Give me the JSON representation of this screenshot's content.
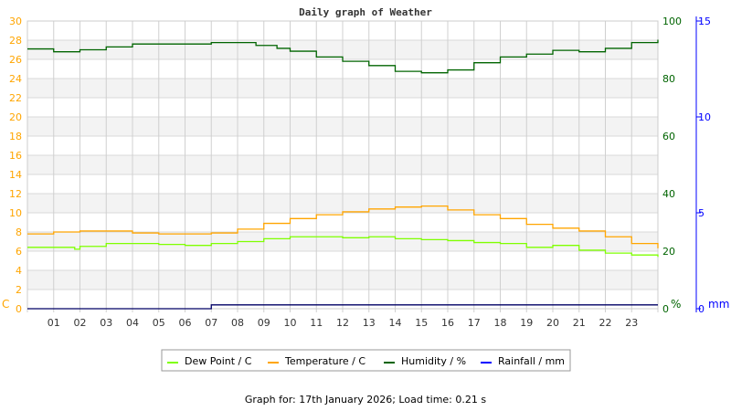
{
  "chart_data": {
    "type": "line",
    "title": "Daily graph of Weather",
    "x_ticks": [
      "01",
      "02",
      "03",
      "04",
      "05",
      "06",
      "07",
      "08",
      "09",
      "10",
      "11",
      "12",
      "13",
      "14",
      "15",
      "16",
      "17",
      "18",
      "19",
      "20",
      "21",
      "22",
      "23"
    ],
    "xlim": [
      0,
      24
    ],
    "axes": {
      "left": {
        "unit": "C",
        "ylim": [
          0,
          30
        ],
        "ticks": [
          0,
          2,
          4,
          6,
          8,
          10,
          12,
          14,
          16,
          18,
          20,
          22,
          24,
          26,
          28,
          30
        ],
        "color": "#ffa500"
      },
      "humidity": {
        "unit": "%",
        "ylim": [
          0,
          100
        ],
        "ticks": [
          0,
          20,
          40,
          60,
          80,
          100
        ],
        "color": "#006400"
      },
      "rain": {
        "unit": "mm",
        "ylim": [
          0,
          15
        ],
        "ticks": [
          0,
          5,
          10,
          15
        ],
        "color": "#0000ff"
      }
    },
    "grid": true,
    "legend_placement": "bottom",
    "series": [
      {
        "name": "Dew Point / C",
        "axis": "left",
        "color": "#7fff00",
        "x": [
          0,
          1,
          1.8,
          2,
          3,
          4,
          5,
          6,
          7,
          8,
          9,
          10,
          11,
          12,
          13,
          14,
          15,
          16,
          17,
          18,
          19,
          20,
          21,
          22,
          23,
          24
        ],
        "y": [
          6.4,
          6.4,
          6.2,
          6.5,
          6.8,
          6.8,
          6.7,
          6.6,
          6.8,
          7.0,
          7.3,
          7.5,
          7.5,
          7.4,
          7.5,
          7.3,
          7.2,
          7.1,
          6.9,
          6.8,
          6.4,
          6.6,
          6.1,
          5.8,
          5.6,
          5.4
        ]
      },
      {
        "name": "Temperature / C",
        "axis": "left",
        "color": "#ffa500",
        "x": [
          0,
          1,
          2,
          3,
          4,
          5,
          6,
          7,
          8,
          9,
          10,
          11,
          12,
          13,
          14,
          15,
          16,
          17,
          18,
          19,
          20,
          21,
          22,
          23,
          24
        ],
        "y": [
          7.8,
          8.0,
          8.1,
          8.1,
          7.9,
          7.8,
          7.8,
          7.9,
          8.3,
          8.9,
          9.4,
          9.8,
          10.1,
          10.4,
          10.6,
          10.7,
          10.3,
          9.8,
          9.4,
          8.8,
          8.4,
          8.1,
          7.5,
          6.8,
          6.3
        ]
      },
      {
        "name": "Humidity / %",
        "axis": "humidity",
        "color": "#006400",
        "x": [
          0,
          1,
          2,
          3,
          4,
          7,
          8.7,
          9.5,
          10,
          11,
          12,
          13,
          14,
          15,
          16,
          17,
          18,
          19,
          20,
          21,
          22,
          23,
          24
        ],
        "y": [
          90.3,
          89.3,
          90,
          91,
          92,
          92.5,
          91.5,
          90.5,
          89.5,
          87.5,
          86,
          84.5,
          82.5,
          82,
          83,
          85.5,
          87.5,
          88.5,
          89.8,
          89.3,
          90.5,
          92.5,
          93.5
        ]
      },
      {
        "name": "Rainfall / mm",
        "axis": "rain",
        "color": "#0000ff",
        "x": [
          0,
          7,
          7,
          24
        ],
        "y": [
          0,
          0,
          0.2,
          0.2
        ]
      }
    ]
  },
  "footer": "Graph for: 17th January 2026; Load time: 0.21 s"
}
